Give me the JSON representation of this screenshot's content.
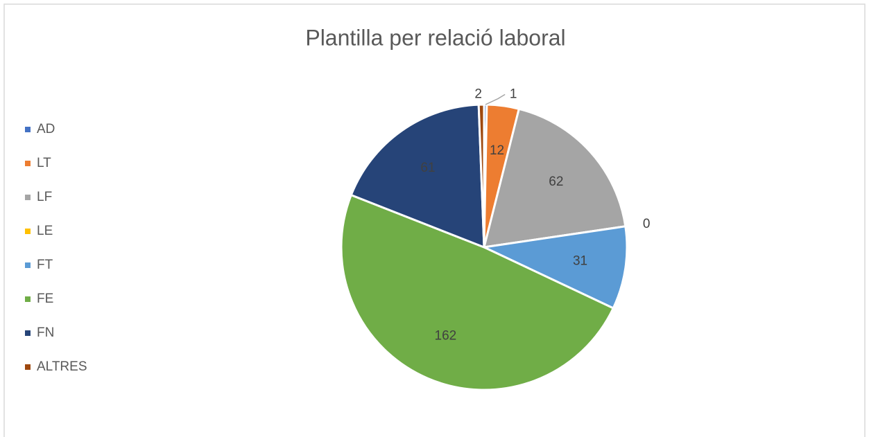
{
  "chart_data": {
    "type": "pie",
    "title": "Plantilla per relació laboral",
    "categories": [
      "AD",
      "LT",
      "LF",
      "LE",
      "FT",
      "FE",
      "FN",
      "ALTRES"
    ],
    "values": [
      1,
      12,
      62,
      0,
      31,
      162,
      61,
      2
    ],
    "colors": [
      "#4472c4",
      "#ed7d31",
      "#a5a5a5",
      "#ffc000",
      "#5b9bd5",
      "#70ad47",
      "#264478",
      "#9e480e"
    ],
    "legend": "left"
  }
}
